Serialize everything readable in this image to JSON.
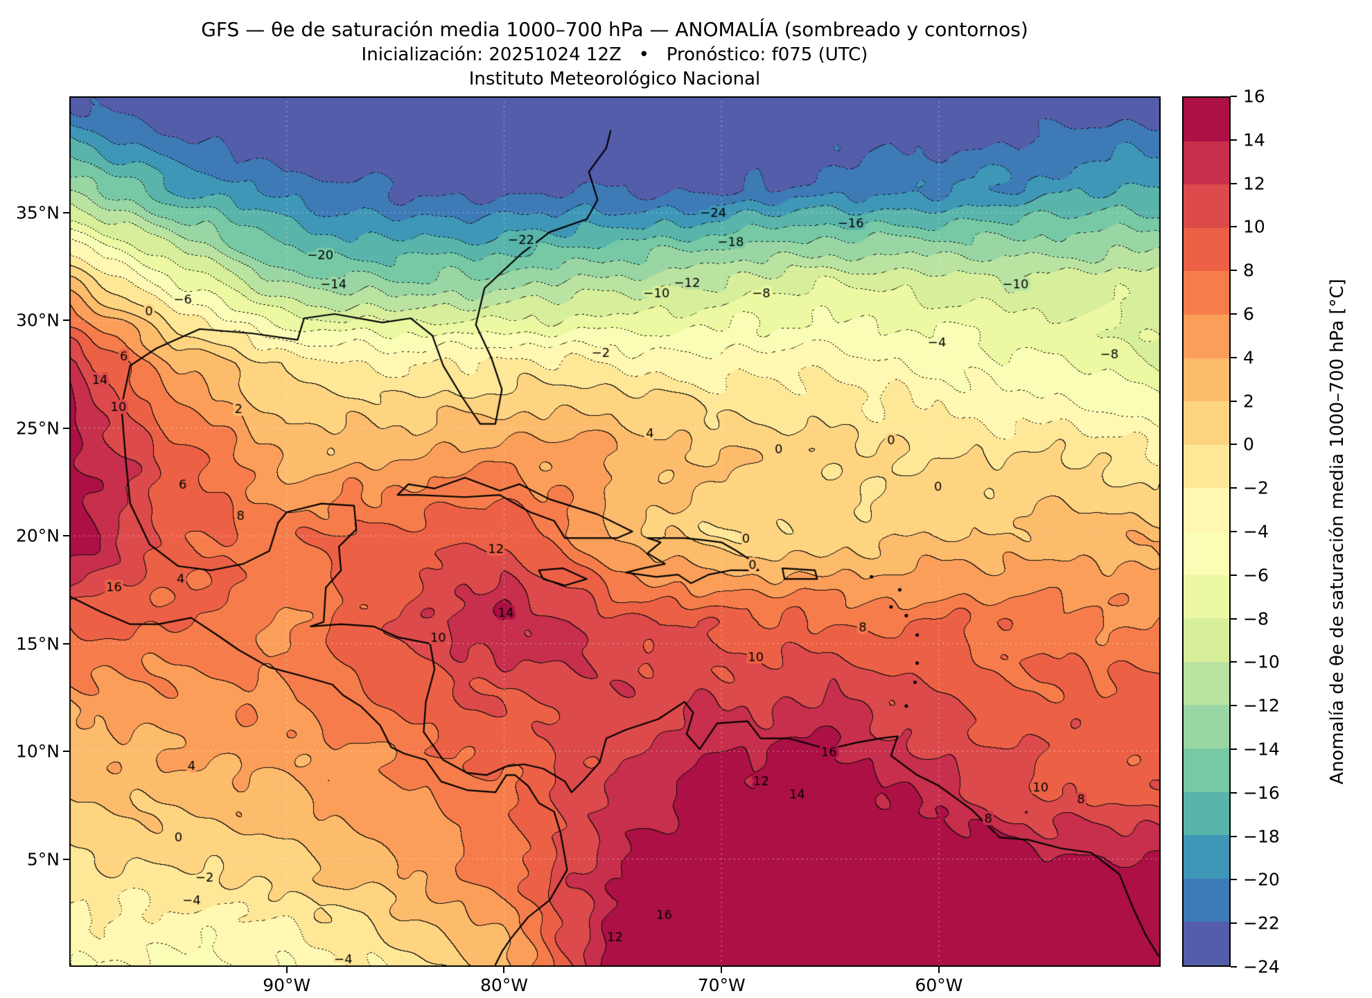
{
  "header": {
    "title_line1": "GFS — θe de saturación media 1000–700 hPa — ANOMALÍA (sombreado y contornos)",
    "title_line2": "Inicialización: 20251024 12Z   •   Pronóstico: f075 (UTC)",
    "title_line3": "Instituto Meteorológico Nacional"
  },
  "axes": {
    "lon_min": -100.0,
    "lon_max": -49.8,
    "lat_min": 0.0,
    "lat_max": 40.4,
    "x_ticks": [
      {
        "lon": -90,
        "label": "90°W"
      },
      {
        "lon": -80,
        "label": "80°W"
      },
      {
        "lon": -70,
        "label": "70°W"
      },
      {
        "lon": -60,
        "label": "60°W"
      }
    ],
    "y_ticks": [
      {
        "lat": 35,
        "label": "35°N"
      },
      {
        "lat": 30,
        "label": "30°N"
      },
      {
        "lat": 25,
        "label": "25°N"
      },
      {
        "lat": 20,
        "label": "20°N"
      },
      {
        "lat": 15,
        "label": "15°N"
      },
      {
        "lat": 10,
        "label": "10°N"
      },
      {
        "lat": 5,
        "label": "5°N"
      }
    ]
  },
  "colorbar": {
    "label": "Anomalía de θe de saturación media 1000–700 hPa [°C]",
    "levels_min": -24,
    "levels_max": 16,
    "level_step": 2,
    "tick_values": [
      16,
      14,
      12,
      10,
      8,
      6,
      4,
      2,
      0,
      -2,
      -4,
      -6,
      -8,
      -10,
      -12,
      -14,
      -16,
      -18,
      -20,
      -22,
      -24
    ],
    "colors_low_to_high": [
      "#535da9",
      "#3d7ab6",
      "#3f97b7",
      "#59b4ab",
      "#77c9a5",
      "#9ad6a4",
      "#bae3a1",
      "#d7ef9b",
      "#ecf8a2",
      "#f9fdb5",
      "#fff7b2",
      "#fee898",
      "#fed481",
      "#fdbb6c",
      "#fb9e5a",
      "#f67d4b",
      "#ec6146",
      "#dd4a4c",
      "#c72f4c",
      "#ac1045"
    ]
  },
  "chart_data": {
    "type": "heatmap",
    "title": "GFS — θe de saturación media 1000–700 hPa — ANOMALÍA (sombreado y contornos)",
    "xlabel": "",
    "ylabel": "",
    "units": "°C",
    "contour_interval": 2,
    "negative_contours_dotted": true,
    "legend_position": "right-colorbar",
    "x": [
      -100,
      -95,
      -90,
      -85,
      -80,
      -75,
      -70,
      -65,
      -60,
      -55,
      -50
    ],
    "y": [
      40,
      36,
      32,
      28,
      24,
      20,
      16,
      12,
      8,
      4,
      0
    ],
    "values": [
      [
        -22,
        -24,
        -26,
        -26,
        -26,
        -26,
        -26,
        -25,
        -24,
        -24,
        -23
      ],
      [
        -12,
        -18,
        -21,
        -22,
        -23,
        -22,
        -22,
        -21,
        -20,
        -19,
        -18
      ],
      [
        2,
        -6,
        -14,
        -14,
        -14,
        -12,
        -10,
        -9,
        -9,
        -10,
        -9
      ],
      [
        13,
        4,
        -1,
        -2,
        -2,
        -2,
        -3,
        -3,
        -4,
        -6,
        -8
      ],
      [
        15,
        9,
        2.5,
        3.5,
        4.5,
        4.5,
        2,
        0.5,
        0,
        -0.5,
        -2
      ],
      [
        16,
        9,
        7,
        9,
        10,
        3,
        0.5,
        0.5,
        2,
        3,
        3
      ],
      [
        9,
        8,
        6,
        10,
        14,
        11,
        9,
        8,
        8,
        7,
        6
      ],
      [
        4,
        5,
        6,
        8,
        10,
        11,
        12,
        13,
        10,
        9,
        9
      ],
      [
        2,
        3,
        4,
        5,
        8,
        12,
        15,
        16.5,
        13,
        10,
        9
      ],
      [
        -1,
        -1,
        1,
        3,
        7,
        14,
        17,
        17,
        17,
        16,
        16
      ],
      [
        -4,
        -5,
        -4,
        -2,
        3,
        15,
        17,
        17,
        17,
        17,
        17
      ]
    ],
    "contour_labels": [
      {
        "v": -24,
        "x": 0.59,
        "y": 0.135
      },
      {
        "v": -22,
        "x": 0.414,
        "y": 0.166
      },
      {
        "v": -20,
        "x": 0.23,
        "y": 0.183
      },
      {
        "v": -18,
        "x": 0.606,
        "y": 0.168
      },
      {
        "v": -16,
        "x": 0.716,
        "y": 0.147
      },
      {
        "v": -14,
        "x": 0.242,
        "y": 0.217
      },
      {
        "v": -12,
        "x": 0.566,
        "y": 0.215
      },
      {
        "v": -10,
        "x": 0.538,
        "y": 0.227
      },
      {
        "v": -8,
        "x": 0.634,
        "y": 0.227
      },
      {
        "v": -10,
        "x": 0.867,
        "y": 0.217
      },
      {
        "v": -8,
        "x": 0.953,
        "y": 0.297
      },
      {
        "v": -6,
        "x": 0.104,
        "y": 0.234
      },
      {
        "v": -4,
        "x": 0.795,
        "y": 0.284
      },
      {
        "v": -2,
        "x": 0.487,
        "y": 0.296
      },
      {
        "v": 0,
        "x": 0.073,
        "y": 0.248
      },
      {
        "v": 6,
        "x": 0.05,
        "y": 0.3
      },
      {
        "v": 14,
        "x": 0.028,
        "y": 0.327
      },
      {
        "v": 10,
        "x": 0.045,
        "y": 0.358
      },
      {
        "v": 2,
        "x": 0.155,
        "y": 0.36
      },
      {
        "v": 4,
        "x": 0.532,
        "y": 0.388
      },
      {
        "v": 0,
        "x": 0.65,
        "y": 0.406
      },
      {
        "v": 0,
        "x": 0.753,
        "y": 0.396
      },
      {
        "v": 6,
        "x": 0.104,
        "y": 0.447
      },
      {
        "v": 0,
        "x": 0.796,
        "y": 0.449
      },
      {
        "v": 8,
        "x": 0.157,
        "y": 0.483
      },
      {
        "v": 0,
        "x": 0.62,
        "y": 0.509
      },
      {
        "v": 12,
        "x": 0.391,
        "y": 0.521
      },
      {
        "v": 0,
        "x": 0.626,
        "y": 0.539
      },
      {
        "v": 16,
        "x": 0.041,
        "y": 0.565
      },
      {
        "v": 4,
        "x": 0.102,
        "y": 0.555
      },
      {
        "v": 14,
        "x": 0.4,
        "y": 0.594
      },
      {
        "v": 8,
        "x": 0.727,
        "y": 0.611
      },
      {
        "v": 10,
        "x": 0.338,
        "y": 0.623
      },
      {
        "v": 10,
        "x": 0.629,
        "y": 0.645
      },
      {
        "v": 4,
        "x": 0.112,
        "y": 0.77
      },
      {
        "v": 12,
        "x": 0.634,
        "y": 0.788
      },
      {
        "v": 16,
        "x": 0.696,
        "y": 0.754
      },
      {
        "v": 14,
        "x": 0.667,
        "y": 0.803
      },
      {
        "v": 10,
        "x": 0.89,
        "y": 0.795
      },
      {
        "v": 8,
        "x": 0.927,
        "y": 0.808
      },
      {
        "v": 8,
        "x": 0.842,
        "y": 0.831
      },
      {
        "v": 0,
        "x": 0.1,
        "y": 0.852
      },
      {
        "v": -2,
        "x": 0.124,
        "y": 0.898
      },
      {
        "v": -4,
        "x": 0.112,
        "y": 0.925
      },
      {
        "v": -4,
        "x": 0.251,
        "y": 0.992
      },
      {
        "v": 16,
        "x": 0.545,
        "y": 0.941
      },
      {
        "v": 12,
        "x": 0.5,
        "y": 0.967
      }
    ]
  },
  "map": {
    "coastlines": {
      "us_gulf_atlantic": [
        [
          -97.6,
          26.0
        ],
        [
          -97.2,
          27.9
        ],
        [
          -96.0,
          28.7
        ],
        [
          -94.0,
          29.6
        ],
        [
          -91.6,
          29.4
        ],
        [
          -89.5,
          29.1
        ],
        [
          -89.2,
          30.1
        ],
        [
          -87.8,
          30.3
        ],
        [
          -85.6,
          29.9
        ],
        [
          -84.3,
          30.1
        ],
        [
          -83.3,
          29.3
        ],
        [
          -82.8,
          27.9
        ],
        [
          -81.9,
          26.4
        ],
        [
          -81.1,
          25.2
        ],
        [
          -80.4,
          25.2
        ],
        [
          -80.1,
          26.8
        ],
        [
          -80.6,
          28.3
        ],
        [
          -81.3,
          29.8
        ],
        [
          -80.9,
          31.5
        ],
        [
          -79.2,
          33.1
        ],
        [
          -77.9,
          34.1
        ],
        [
          -76.2,
          34.7
        ],
        [
          -75.7,
          35.6
        ],
        [
          -76.1,
          36.9
        ],
        [
          -75.3,
          38.0
        ],
        [
          -75.1,
          38.8
        ]
      ],
      "mexico_ca_southamerica_caribbean": [
        [
          -97.6,
          26.0
        ],
        [
          -97.4,
          23.5
        ],
        [
          -97.2,
          21.5
        ],
        [
          -96.3,
          19.6
        ],
        [
          -95.0,
          18.6
        ],
        [
          -93.5,
          18.4
        ],
        [
          -92.0,
          18.7
        ],
        [
          -90.8,
          19.3
        ],
        [
          -90.4,
          20.6
        ],
        [
          -90.0,
          21.1
        ],
        [
          -88.4,
          21.5
        ],
        [
          -86.9,
          21.4
        ],
        [
          -86.8,
          20.3
        ],
        [
          -87.6,
          19.5
        ],
        [
          -87.5,
          18.4
        ],
        [
          -88.2,
          17.6
        ],
        [
          -88.3,
          16.0
        ],
        [
          -88.9,
          15.8
        ],
        [
          -87.5,
          15.9
        ],
        [
          -86.0,
          15.8
        ],
        [
          -84.9,
          15.3
        ],
        [
          -83.4,
          15.0
        ],
        [
          -83.2,
          13.8
        ],
        [
          -83.6,
          12.3
        ],
        [
          -83.7,
          10.9
        ],
        [
          -82.8,
          9.6
        ],
        [
          -81.7,
          9.0
        ],
        [
          -80.8,
          8.9
        ],
        [
          -79.9,
          9.3
        ],
        [
          -79.1,
          9.4
        ],
        [
          -78.2,
          9.2
        ],
        [
          -77.2,
          8.6
        ],
        [
          -76.9,
          8.1
        ],
        [
          -76.3,
          8.7
        ],
        [
          -75.6,
          9.5
        ],
        [
          -75.3,
          10.6
        ],
        [
          -74.4,
          11.0
        ],
        [
          -72.9,
          11.5
        ],
        [
          -71.7,
          12.3
        ],
        [
          -71.3,
          11.8
        ],
        [
          -71.6,
          10.8
        ],
        [
          -71.0,
          10.1
        ],
        [
          -70.2,
          11.3
        ],
        [
          -68.8,
          11.4
        ],
        [
          -68.2,
          10.6
        ],
        [
          -66.9,
          10.6
        ],
        [
          -65.1,
          10.1
        ],
        [
          -63.8,
          10.4
        ],
        [
          -62.7,
          10.6
        ],
        [
          -61.9,
          10.7
        ],
        [
          -62.2,
          9.8
        ],
        [
          -61.0,
          8.9
        ],
        [
          -60.0,
          8.4
        ],
        [
          -58.5,
          7.3
        ],
        [
          -57.2,
          6.0
        ],
        [
          -55.9,
          5.9
        ],
        [
          -54.4,
          5.5
        ],
        [
          -53.0,
          5.3
        ],
        [
          -51.7,
          4.3
        ],
        [
          -51.1,
          2.8
        ],
        [
          -50.5,
          1.5
        ],
        [
          -49.9,
          0.5
        ]
      ],
      "pacific_coast": [
        [
          -100.0,
          17.2
        ],
        [
          -98.6,
          16.5
        ],
        [
          -97.2,
          15.9
        ],
        [
          -95.9,
          15.9
        ],
        [
          -94.4,
          16.2
        ],
        [
          -93.2,
          15.4
        ],
        [
          -92.2,
          14.7
        ],
        [
          -90.8,
          13.9
        ],
        [
          -89.3,
          13.5
        ],
        [
          -87.9,
          13.1
        ],
        [
          -87.4,
          12.6
        ],
        [
          -86.6,
          12.1
        ],
        [
          -85.7,
          11.2
        ],
        [
          -85.2,
          10.2
        ],
        [
          -84.6,
          9.9
        ],
        [
          -83.6,
          9.6
        ],
        [
          -82.9,
          8.6
        ],
        [
          -81.7,
          8.2
        ],
        [
          -80.4,
          8.1
        ],
        [
          -79.9,
          8.9
        ],
        [
          -79.5,
          8.9
        ],
        [
          -78.9,
          8.4
        ],
        [
          -78.4,
          7.6
        ],
        [
          -77.7,
          7.2
        ],
        [
          -77.4,
          6.2
        ],
        [
          -77.1,
          4.5
        ],
        [
          -77.9,
          3.1
        ],
        [
          -78.9,
          2.3
        ],
        [
          -79.7,
          1.3
        ],
        [
          -80.1,
          0.7
        ],
        [
          -80.4,
          0.1
        ]
      ],
      "cuba": [
        [
          -84.9,
          21.9
        ],
        [
          -84.4,
          22.4
        ],
        [
          -83.2,
          22.2
        ],
        [
          -81.8,
          22.7
        ],
        [
          -80.2,
          22.1
        ],
        [
          -79.3,
          22.4
        ],
        [
          -77.9,
          21.7
        ],
        [
          -75.7,
          21.0
        ],
        [
          -74.1,
          20.2
        ],
        [
          -74.8,
          19.9
        ],
        [
          -77.2,
          19.9
        ],
        [
          -77.7,
          20.7
        ],
        [
          -78.8,
          21.1
        ],
        [
          -80.2,
          21.9
        ],
        [
          -81.8,
          21.8
        ],
        [
          -84.0,
          21.9
        ],
        [
          -84.9,
          21.9
        ]
      ],
      "hispaniola": [
        [
          -73.4,
          19.9
        ],
        [
          -71.7,
          19.9
        ],
        [
          -70.8,
          19.8
        ],
        [
          -70.0,
          19.7
        ],
        [
          -69.3,
          19.3
        ],
        [
          -68.7,
          18.9
        ],
        [
          -68.3,
          18.4
        ],
        [
          -69.6,
          18.4
        ],
        [
          -70.6,
          18.2
        ],
        [
          -71.4,
          17.8
        ],
        [
          -72.0,
          18.2
        ],
        [
          -73.0,
          18.1
        ],
        [
          -74.4,
          18.3
        ],
        [
          -73.6,
          18.5
        ],
        [
          -72.6,
          18.7
        ],
        [
          -73.4,
          19.2
        ],
        [
          -72.8,
          19.7
        ],
        [
          -73.4,
          19.9
        ]
      ],
      "jamaica": [
        [
          -78.4,
          18.4
        ],
        [
          -77.3,
          18.5
        ],
        [
          -76.2,
          18.0
        ],
        [
          -77.2,
          17.7
        ],
        [
          -78.2,
          18.0
        ],
        [
          -78.4,
          18.4
        ]
      ],
      "puerto_rico": [
        [
          -67.2,
          18.5
        ],
        [
          -65.7,
          18.4
        ],
        [
          -65.6,
          18.0
        ],
        [
          -67.1,
          18.0
        ],
        [
          -67.2,
          18.5
        ]
      ]
    },
    "small_islands": [
      [
        -61.5,
        12.1
      ],
      [
        -61.1,
        13.2
      ],
      [
        -61.0,
        14.1
      ],
      [
        -61.0,
        15.4
      ],
      [
        -61.5,
        16.3
      ],
      [
        -62.2,
        16.7
      ],
      [
        -61.8,
        17.5
      ],
      [
        -63.1,
        18.1
      ]
    ]
  }
}
